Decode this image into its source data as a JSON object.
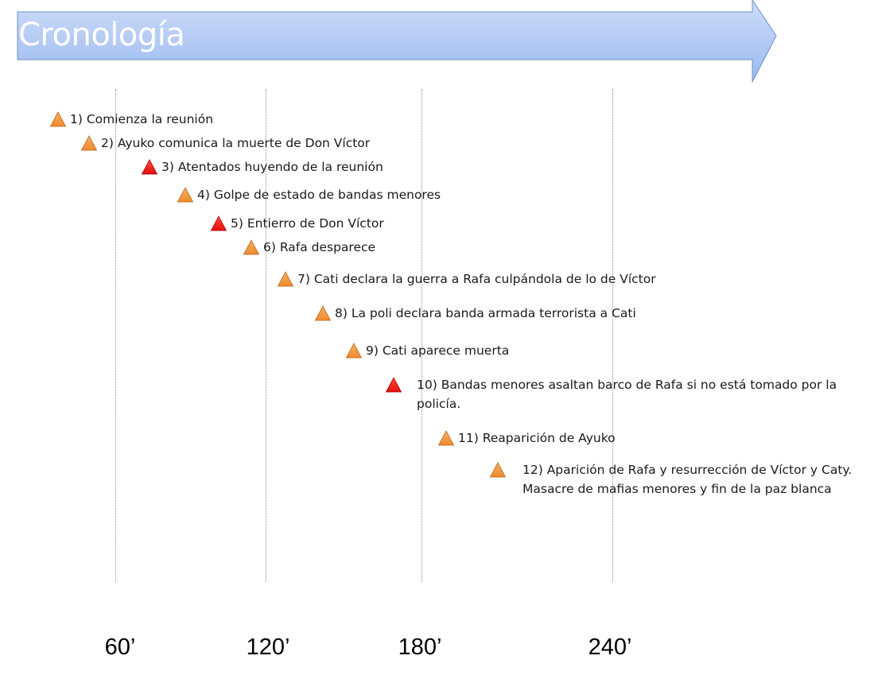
{
  "title": "Cronología",
  "colors": {
    "banner_top": "#cddcf8",
    "banner_bottom": "#9bbaf0",
    "banner_border": "#6d8fc8",
    "marker_orange": "#ee8a2c",
    "marker_red": "#e40f0f",
    "gridline": "#6f93c4"
  },
  "axis": {
    "ticks": [
      "60’",
      "120’",
      "180’",
      "240’"
    ]
  },
  "events": [
    {
      "text": "1) Comienza la reunión",
      "marker": "orange"
    },
    {
      "text": "2) Ayuko comunica la muerte de Don Víctor",
      "marker": "orange"
    },
    {
      "text": "3) Atentados huyendo de la reunión",
      "marker": "red"
    },
    {
      "text": "4) Golpe de estado de bandas menores",
      "marker": "orange"
    },
    {
      "text": "5) Entierro de Don Víctor",
      "marker": "red"
    },
    {
      "text": "6) Rafa desparece",
      "marker": "orange"
    },
    {
      "text": "7) Cati declara la guerra a Rafa culpándola de lo de Víctor",
      "marker": "orange"
    },
    {
      "text": "8) La poli declara banda armada terrorista a Cati",
      "marker": "orange"
    },
    {
      "text": "9) Cati aparece muerta",
      "marker": "orange"
    },
    {
      "text": "10) Bandas menores asaltan barco de Rafa si no está tomado por la policía.",
      "marker": "red"
    },
    {
      "text": "11) Reaparición de Ayuko",
      "marker": "orange"
    },
    {
      "text": "12) Aparición de Rafa y resurrección de Víctor y Caty. Masacre de mafias menores y fin de la paz blanca",
      "marker": "orange"
    }
  ]
}
